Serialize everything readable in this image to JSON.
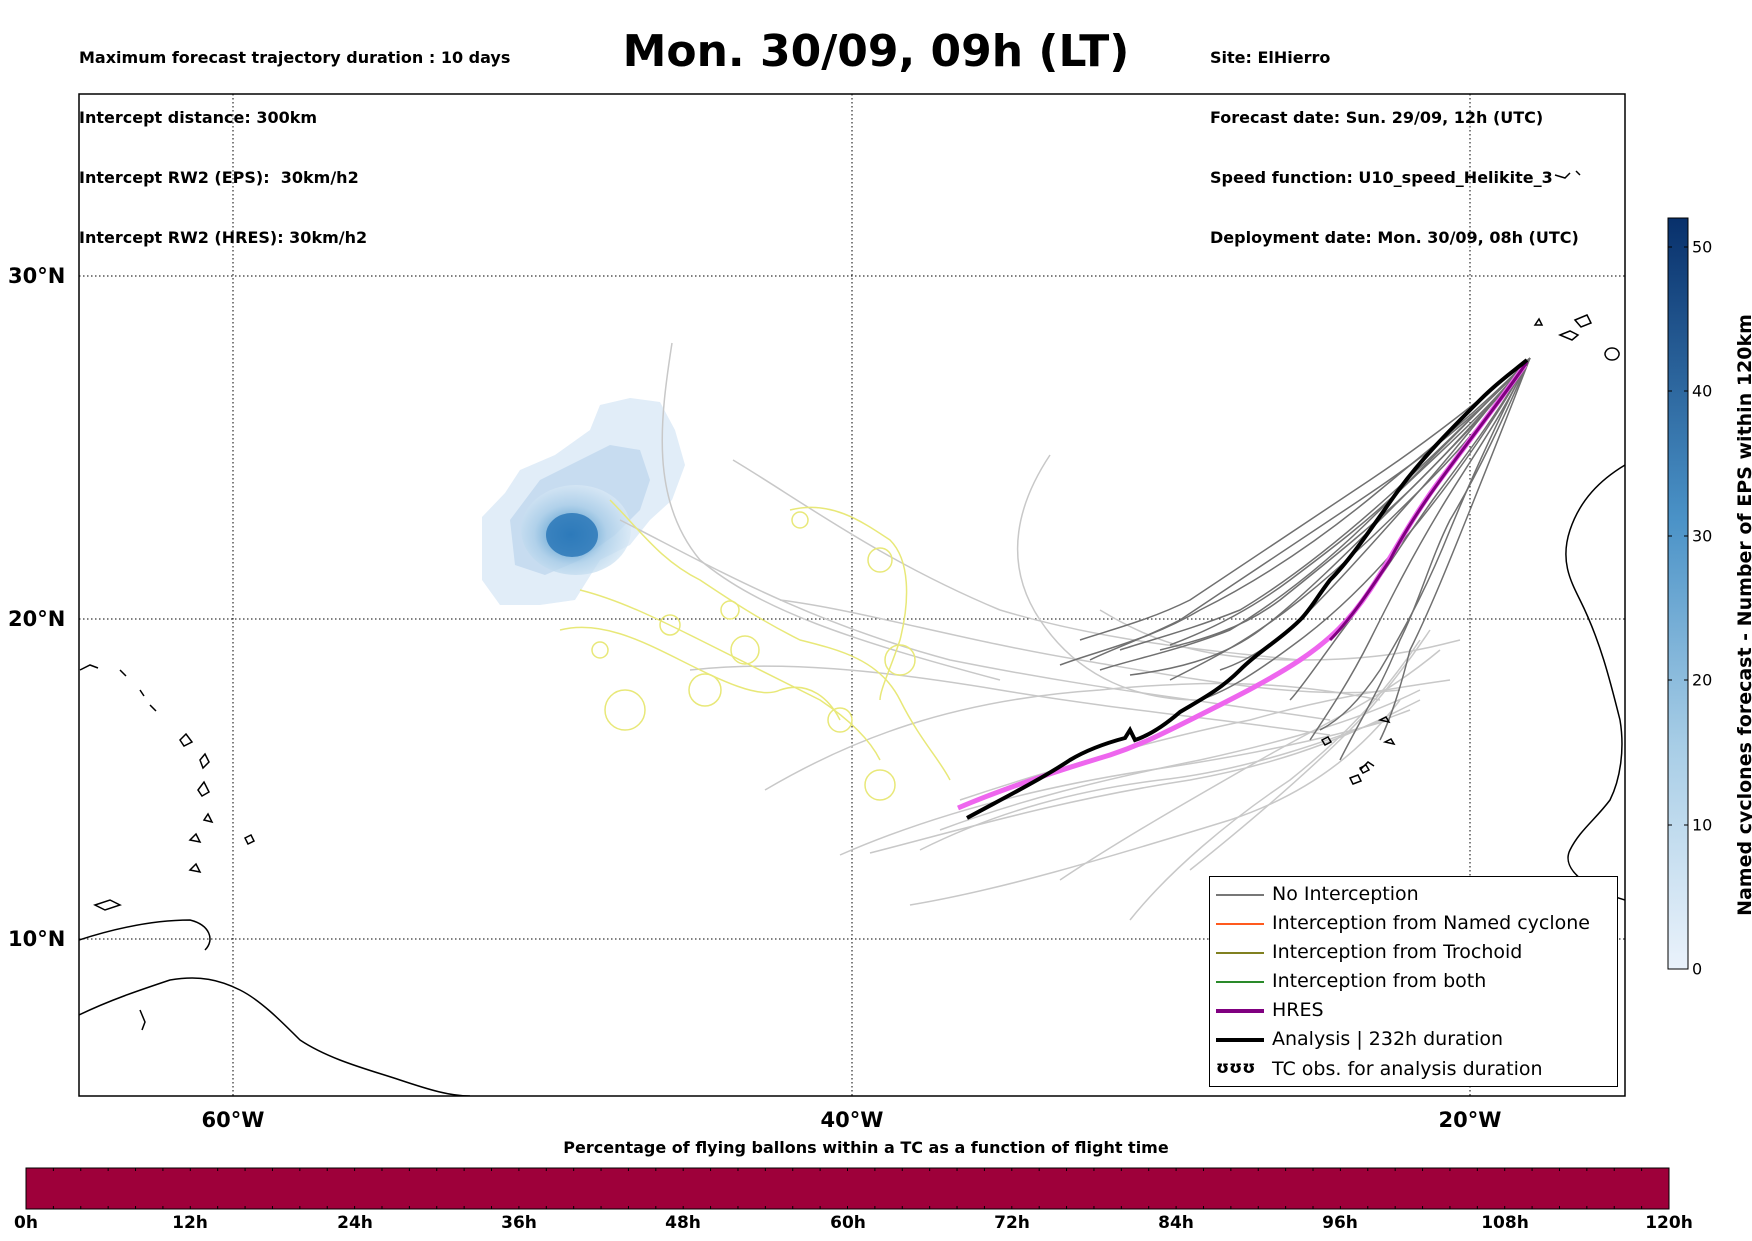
{
  "header": {
    "left_lines": [
      "Maximum forecast trajectory duration : 10 days",
      "Intercept distance: 300km",
      "Intercept RW2 (EPS):  30km/h2",
      "Intercept RW2 (HRES): 30km/h2"
    ],
    "title": "Mon. 30/09, 09h (LT)",
    "right_lines": [
      "Site: ElHierro",
      "Forecast date: Sun. 29/09, 12h (UTC)",
      "Speed function: U10_speed_Helikite_3",
      "Deployment date: Mon. 30/09, 08h (UTC)"
    ]
  },
  "map": {
    "longitude_ticks": [
      "60°W",
      "40°W",
      "20°W"
    ],
    "latitude_ticks": [
      "30°N",
      "20°N",
      "10°N"
    ],
    "colors": {
      "no_interception": "#6e6e6e",
      "older_tracks": "#c8c8c8",
      "trochoid_tracks": "#e8e878",
      "hres": "#800080",
      "hres_highlight": "#ee66ee",
      "analysis": "#000000",
      "density_light": "#deebf7",
      "density_dark": "#2b7bba"
    }
  },
  "legend": {
    "items": [
      {
        "label": "No Interception",
        "color": "#777777",
        "width": 1.5
      },
      {
        "label": "Interception from Named cyclone",
        "color": "#ff5a1e",
        "width": 1.5
      },
      {
        "label": "Interception from Trochoid",
        "color": "#808020",
        "width": 1.5
      },
      {
        "label": "Interception from both",
        "color": "#2a8a2a",
        "width": 1.5
      },
      {
        "label": "HRES",
        "color": "#800080",
        "width": 4
      },
      {
        "label": "Analysis | 232h duration",
        "color": "#000000",
        "width": 4
      }
    ],
    "glyph_item": {
      "glyph": "ʊʊʊ",
      "label": "TC obs. for analysis duration"
    }
  },
  "colorbar": {
    "title": "Named cyclones forecast - Number of EPS within 120km",
    "ticks": [
      "0",
      "10",
      "20",
      "30",
      "40",
      "50"
    ],
    "min": 0,
    "max": 52,
    "color_low": "#e6eff9",
    "color_high": "#08306b"
  },
  "flight_bar": {
    "title": "Percentage of flying ballons within a TC as a function of flight time",
    "ticks": [
      "0h",
      "12h",
      "24h",
      "36h",
      "48h",
      "60h",
      "72h",
      "84h",
      "96h",
      "108h",
      "120h"
    ],
    "fill_color": "#9e003a"
  }
}
